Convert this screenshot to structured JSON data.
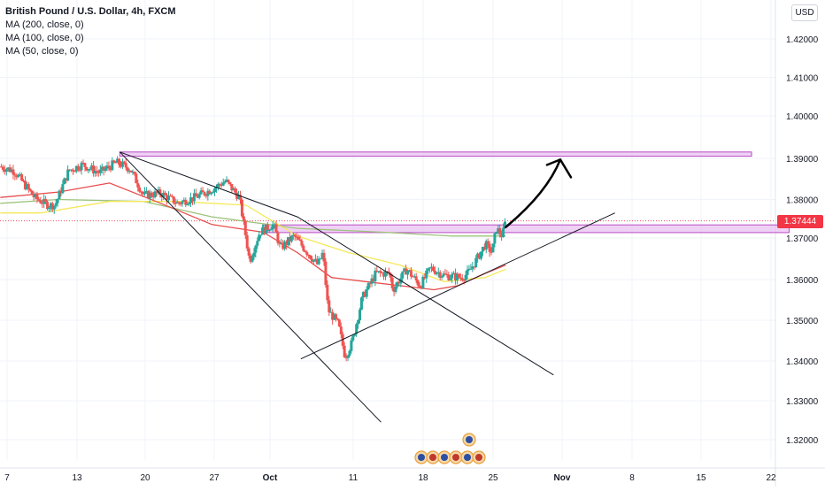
{
  "chart_data": {
    "type": "candlestick",
    "title": "British Pound / U.S. Dollar, 4h, FXCM",
    "legend": [
      "MA (200, close, 0)",
      "MA (100, close, 0)",
      "MA (50, close, 0)"
    ],
    "currency": "USD",
    "last_price": "1.37444",
    "y_ticks": [
      "1.42000",
      "1.41000",
      "1.40000",
      "1.39000",
      "1.38000",
      "1.37000",
      "1.36000",
      "1.35000",
      "1.34000",
      "1.33000",
      "1.32000"
    ],
    "x_ticks": [
      "7",
      "13",
      "20",
      "27",
      "Oct",
      "11",
      "18",
      "25",
      "Nov",
      "8",
      "15",
      "22"
    ],
    "ylim": [
      1.315,
      1.425
    ],
    "grid": true,
    "candle_path": [
      [
        -2,
        1.388
      ],
      [
        2,
        1.387
      ],
      [
        8,
        1.3805
      ],
      [
        12,
        1.3785
      ],
      [
        14,
        1.3785
      ],
      [
        18,
        1.387
      ],
      [
        22,
        1.3885
      ],
      [
        27,
        1.3865
      ],
      [
        32,
        1.389
      ],
      [
        36,
        1.3875
      ],
      [
        40,
        1.381
      ],
      [
        45,
        1.3815
      ],
      [
        50,
        1.379
      ],
      [
        55,
        1.3805
      ],
      [
        60,
        1.3825
      ],
      [
        64,
        1.3845
      ],
      [
        68,
        1.3805
      ],
      [
        71,
        1.3645
      ],
      [
        74,
        1.3715
      ],
      [
        78,
        1.3735
      ],
      [
        80,
        1.3675
      ],
      [
        84,
        1.3705
      ],
      [
        87,
        1.3675
      ],
      [
        91,
        1.3635
      ],
      [
        92.5,
        1.3665
      ],
      [
        94,
        1.3525
      ],
      [
        97,
        1.349
      ],
      [
        99,
        1.341
      ],
      [
        101,
        1.3445
      ],
      [
        104,
        1.3555
      ],
      [
        108,
        1.3615
      ],
      [
        112,
        1.3615
      ],
      [
        113,
        1.3575
      ],
      [
        117,
        1.3625
      ],
      [
        121,
        1.3585
      ],
      [
        124,
        1.3628
      ],
      [
        128,
        1.361
      ],
      [
        133,
        1.3605
      ],
      [
        135,
        1.3615
      ],
      [
        138,
        1.3655
      ],
      [
        140,
        1.3685
      ],
      [
        142,
        1.3665
      ],
      [
        143.3,
        1.3725
      ],
      [
        145,
        1.3705
      ],
      [
        146,
        1.3745
      ]
    ],
    "moving_averages": [
      {
        "name": "MA (200, close, 0)",
        "color": "#9cc47b",
        "points": [
          [
            -2,
            1.379
          ],
          [
            15,
            1.38
          ],
          [
            40,
            1.3795
          ],
          [
            60,
            1.3755
          ],
          [
            85,
            1.3725
          ],
          [
            110,
            1.3715
          ],
          [
            130,
            1.3705
          ],
          [
            146,
            1.3705
          ]
        ]
      },
      {
        "name": "MA (100, close, 0)",
        "color": "#f5e85a",
        "points": [
          [
            -2,
            1.3765
          ],
          [
            10,
            1.3765
          ],
          [
            30,
            1.3795
          ],
          [
            50,
            1.3795
          ],
          [
            70,
            1.3785
          ],
          [
            85,
            1.3705
          ],
          [
            100,
            1.3665
          ],
          [
            115,
            1.3635
          ],
          [
            128,
            1.3595
          ],
          [
            140,
            1.3605
          ],
          [
            146,
            1.3625
          ]
        ]
      },
      {
        "name": "MA (50, close, 0)",
        "color": "#e84c4c",
        "points": [
          [
            -2,
            1.3805
          ],
          [
            15,
            1.3818
          ],
          [
            30,
            1.384
          ],
          [
            45,
            1.379
          ],
          [
            60,
            1.3735
          ],
          [
            75,
            1.3715
          ],
          [
            85,
            1.3665
          ],
          [
            95,
            1.3605
          ],
          [
            105,
            1.3595
          ],
          [
            115,
            1.3585
          ],
          [
            125,
            1.3575
          ],
          [
            132,
            1.3585
          ],
          [
            140,
            1.3615
          ],
          [
            146,
            1.3635
          ]
        ]
      }
    ],
    "zones": [
      {
        "x1": 33,
        "x2": 218,
        "y_top": 1.3915,
        "y_bottom": 1.3905
      },
      {
        "x1": 75,
        "x2": 229,
        "y_top": 1.3734,
        "y_bottom": 1.3714
      }
    ],
    "trendlines": [
      [
        [
          33,
          1.3915
        ],
        [
          85,
          1.3755
        ],
        [
          160,
          1.3365
        ]
      ],
      [
        [
          33,
          1.3915
        ],
        [
          109.5,
          1.3245
        ]
      ],
      [
        [
          86,
          1.3405
        ],
        [
          178,
          1.3765
        ]
      ]
    ],
    "arrow": {
      "from": [
        146,
        1.3728
      ],
      "via": [
        158,
        1.3815
      ],
      "to": [
        162,
        1.3897
      ],
      "head_x": 162
    }
  }
}
